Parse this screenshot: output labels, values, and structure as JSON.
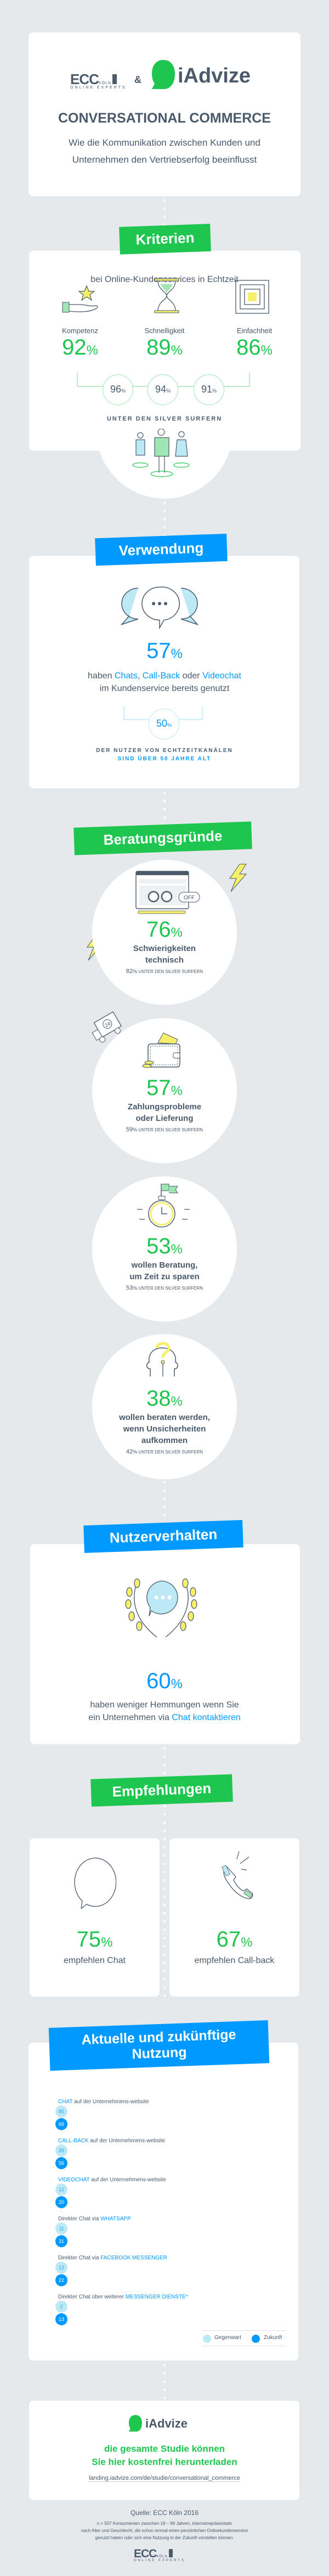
{
  "header": {
    "logo_ecc": "ECC",
    "logo_ecc_city": "KÖLN",
    "logo_ecc_sub": "ONLINE EXPERTS",
    "ampersand": "&",
    "logo_iadvize": "iAdvize",
    "title": "CONVERSATIONAL COMMERCE",
    "subtitle_line1": "Wie die Kommunikation zwischen Kunden und",
    "subtitle_line2": "Unternehmen den Vertriebserfolg beeinflusst"
  },
  "kriterien": {
    "tag": "Kriterien",
    "intro": "bei Online-Kundenservices in Echtzeit",
    "items": [
      {
        "label": "Kompetenz",
        "value": "92",
        "silver": "96"
      },
      {
        "label": "Schnelligkeit",
        "value": "89",
        "silver": "94"
      },
      {
        "label": "Einfachheit",
        "value": "86",
        "silver": "91"
      }
    ],
    "pct": "%",
    "silver_caption": "UNTER DEN SILVER SURFERN"
  },
  "verwendung": {
    "tag": "Verwendung",
    "value": "57",
    "text_1": "haben ",
    "hl_1": "Chats",
    "text_2": ", ",
    "hl_2": "Call-Back",
    "text_3": " oder ",
    "hl_3": "Videochat",
    "text_line2": "im Kundenservice bereits genutzt",
    "sub_value": "50",
    "caption_1": "DER NUTZER VON ECHTZEITKANÄLEN",
    "caption_2": "SIND ÜBER 50 JAHRE ALT"
  },
  "gruende": {
    "tag": "Beratungsgründe",
    "silver_suffix": "UNTER DEN SILVER SURFERN",
    "items": [
      {
        "value": "76",
        "line1": "Schwierigkeiten",
        "line2": "technisch",
        "line3": "",
        "silver": "82",
        "off_label": "OFF"
      },
      {
        "value": "57",
        "line1": "Zahlungsprobleme",
        "line2": "oder Lieferung",
        "line3": "",
        "silver": "59",
        "truck_label": "24"
      },
      {
        "value": "53",
        "line1": "wollen Beratung,",
        "line2": "um Zeit zu sparen",
        "line3": "",
        "silver": "53"
      },
      {
        "value": "38",
        "line1": "wollen beraten werden,",
        "line2": "wenn Unsicherheiten",
        "line3": "aufkommen",
        "silver": "42"
      }
    ]
  },
  "nutzerverhalten": {
    "tag": "Nutzerverhalten",
    "value": "60",
    "line1": "haben weniger Hemmungen wenn Sie",
    "line2_text": "ein Unternehmen via ",
    "line2_hl": "Chat kontaktieren"
  },
  "empfehlungen": {
    "tag": "Empfehlungen",
    "items": [
      {
        "value": "75",
        "label": "empfehlen Chat"
      },
      {
        "value": "67",
        "label": "empfehlen Call-back"
      }
    ]
  },
  "nutzung": {
    "tag_line1": "Aktuelle und zukünftige",
    "tag_line2": "Nutzung",
    "rows": [
      {
        "pre": "",
        "hl": "CHAT",
        "post": " auf der Unternehmens-website",
        "current": 85,
        "future": 66
      },
      {
        "pre": "",
        "hl": "CALL-BACK",
        "post": " auf der Unternehmens-website",
        "current": 39,
        "future": 56
      },
      {
        "pre": "",
        "hl": "VIDEOCHAT",
        "post": " auf der Unternehmens-website",
        "current": 12,
        "future": 20
      },
      {
        "pre": "Direkter Chat via ",
        "hl": "WHATSAPP",
        "post": "",
        "current": 11,
        "future": 31
      },
      {
        "pre": "Direkter Chat via ",
        "hl": "FACEBOOK MESSENGER",
        "post": "",
        "current": 13,
        "future": 22
      },
      {
        "pre": "Direkter Chat über weiterer ",
        "hl": "MESSENGER DIENSTE*",
        "post": "",
        "current": 2,
        "future": 13
      }
    ],
    "legend_current": "Gegenwart",
    "legend_future": "Zukunft"
  },
  "footer_card": {
    "logo_iadvize": "iAdvize",
    "cta_line1": "die gesamte Studie können",
    "cta_line2": "Sie hier kostenfrei herunterladen",
    "link": "landing.iadvize.com/de/studie/conversational_commerce"
  },
  "source": {
    "title": "Quelle: ECC Köln 2016",
    "line1": "n = 507 Konsumenten zwischen 18 – 99 Jahren, internetrepräsentativ",
    "line2": "nach Alter und Geschlecht, die schon einmal einen persönlichen Onlinekundenservice",
    "line3": "genutzt haben oder sich eine Nutzung in der Zukunft vorstellen können.",
    "logo_ecc": "ECC",
    "logo_ecc_city": "KÖLN",
    "logo_ecc_sub": "ONLINE EXPERTS"
  },
  "colors": {
    "green": "#1ec64f",
    "blue": "#0099ff",
    "text": "#4a5a6b",
    "bg": "#e5e9ec",
    "light_blue": "#bde9f7"
  }
}
